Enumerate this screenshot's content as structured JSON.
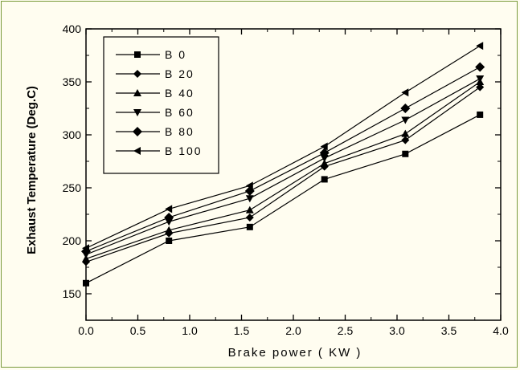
{
  "chart_data": {
    "type": "line",
    "xlabel": "Brake power    ( KW )",
    "ylabel": "Exhaust Temperature  (Deg.C)",
    "xlim": [
      0,
      4.0
    ],
    "ylim": [
      125,
      400
    ],
    "x_ticks": [
      "0.0",
      "0.5",
      "1.0",
      "1.5",
      "2.0",
      "2.5",
      "3.0",
      "3.5",
      "4.0"
    ],
    "y_ticks": [
      "150",
      "200",
      "250",
      "300",
      "350",
      "400"
    ],
    "x": [
      0.0,
      0.8,
      1.58,
      2.3,
      3.08,
      3.8
    ],
    "legend_position": "top-left",
    "grid": false,
    "series": [
      {
        "name": "B 0",
        "marker": "square",
        "values": [
          160,
          200,
          213,
          258,
          282,
          319
        ]
      },
      {
        "name": "B 20",
        "marker": "diamond",
        "values": [
          180,
          207,
          222,
          270,
          295,
          345
        ]
      },
      {
        "name": "B 40",
        "marker": "triangle-up",
        "values": [
          183,
          210,
          229,
          273,
          301,
          350
        ]
      },
      {
        "name": "B 60",
        "marker": "triangle-down",
        "values": [
          187,
          218,
          240,
          278,
          314,
          353
        ]
      },
      {
        "name": "B 80",
        "marker": "diamond-big",
        "values": [
          190,
          222,
          247,
          283,
          325,
          364
        ]
      },
      {
        "name": "B 100",
        "marker": "triangle-left",
        "values": [
          193,
          230,
          252,
          289,
          340,
          384
        ]
      }
    ]
  }
}
